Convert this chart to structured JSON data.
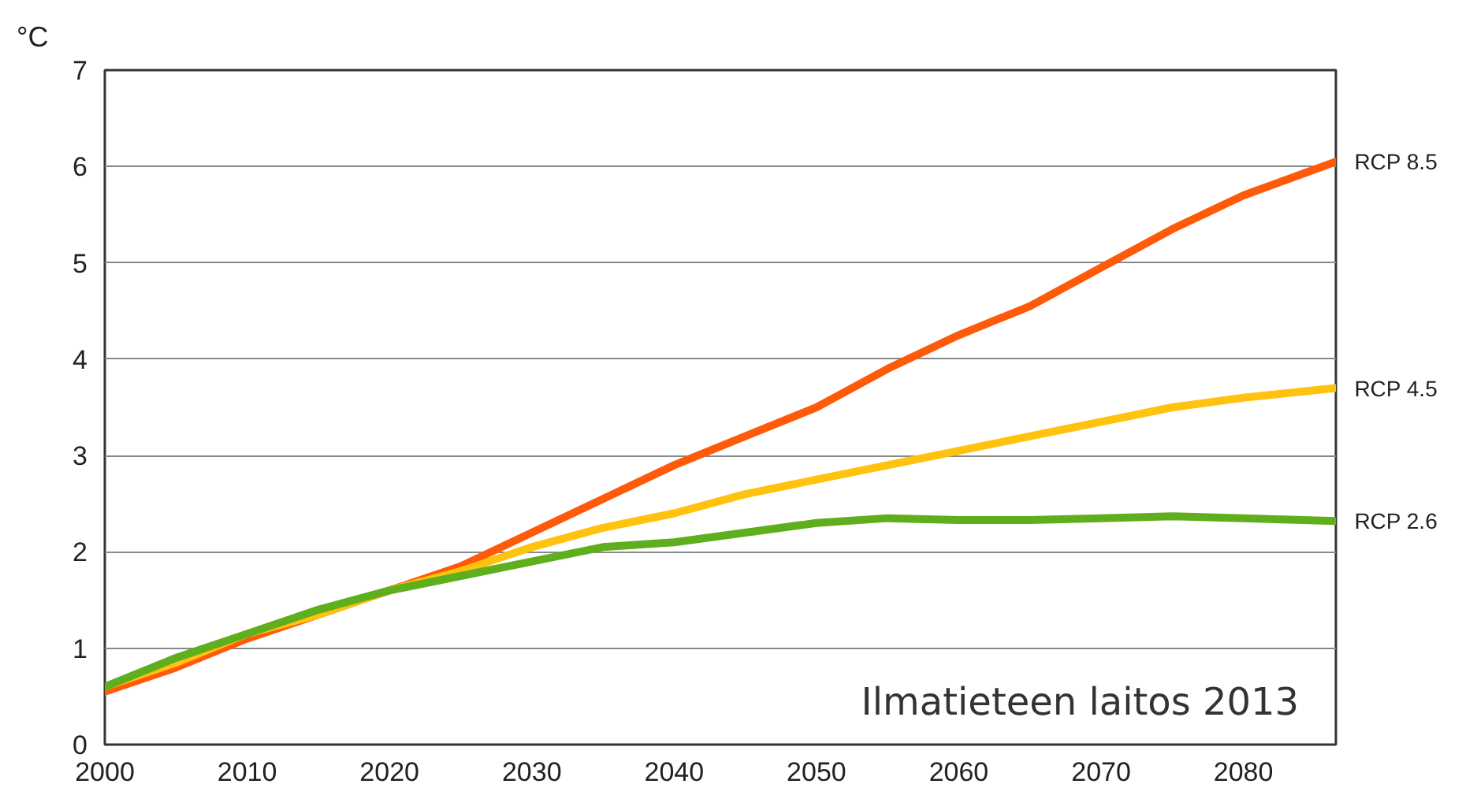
{
  "chart_data": {
    "type": "line",
    "ylabel": "°C",
    "xlim": [
      2000,
      2086.5
    ],
    "xticks": [
      2000,
      2010,
      2020,
      2030,
      2040,
      2050,
      2060,
      2070,
      2080
    ],
    "ylim": [
      0,
      7
    ],
    "yticks": [
      0,
      1,
      2,
      3,
      4,
      5,
      6,
      7
    ],
    "grid": "y",
    "legend": false,
    "marker": "none",
    "line_style": "solid",
    "x": [
      2000,
      2005,
      2010,
      2015,
      2020,
      2025,
      2030,
      2035,
      2040,
      2045,
      2050,
      2055,
      2060,
      2065,
      2070,
      2075,
      2080,
      2086.5
    ],
    "series": [
      {
        "name": "RCP 8.5",
        "color": "#ff5a0a",
        "values": [
          0.55,
          0.8,
          1.1,
          1.35,
          1.6,
          1.85,
          2.2,
          2.55,
          2.9,
          3.2,
          3.5,
          3.9,
          4.25,
          4.55,
          4.95,
          5.35,
          5.7,
          6.05
        ]
      },
      {
        "name": "RCP 4.5",
        "color": "#ffc20e",
        "values": [
          0.6,
          0.85,
          1.15,
          1.35,
          1.6,
          1.8,
          2.05,
          2.25,
          2.4,
          2.6,
          2.75,
          2.9,
          3.05,
          3.2,
          3.35,
          3.5,
          3.6,
          3.7
        ]
      },
      {
        "name": "RCP 2.6",
        "color": "#5fae1e",
        "values": [
          0.6,
          0.9,
          1.15,
          1.4,
          1.6,
          1.75,
          1.9,
          2.05,
          2.1,
          2.2,
          2.3,
          2.35,
          2.33,
          2.33,
          2.35,
          2.37,
          2.35,
          2.32
        ]
      }
    ],
    "annotations": [
      "Ilmatieteen laitos 2013"
    ]
  }
}
